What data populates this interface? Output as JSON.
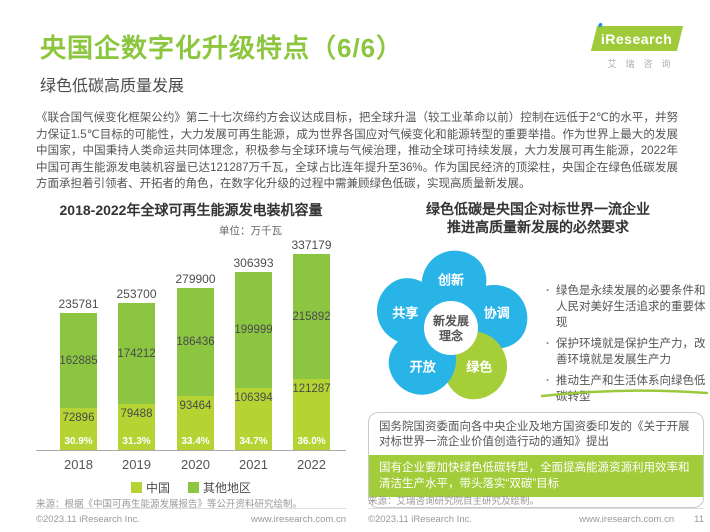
{
  "header": {
    "title": "央国企数字化升级特点（6/6）",
    "subtitle": "绿色低碳高质量发展",
    "logo": {
      "brand": "iResearch",
      "brand_cn": "艾瑞咨询"
    }
  },
  "intro_paragraph": "《联合国气候变化框架公约》第二十七次缔约方会议达成目标，把全球升温（较工业革命以前）控制在远低于2℃的水平，并努力保证1.5℃目标的可能性，大力发展可再生能源，成为世界各国应对气候变化和能源转型的重要举措。作为世界上最大的发展中国家，中国秉持人类命运共同体理念，积极参与全球环境与气候治理，推动全球可持续发展，大力发展可再生能源，2022年中国可再生能源发电装机容量已达121287万千瓦，全球占比连年提升至36%。作为国民经济的顶梁柱，央国企在绿色低碳发展方面承担着引领者、开拓者的角色，在数字化升级的过程中需兼顾绿色低碳，实现高质量新发展。",
  "chart_data": {
    "type": "bar",
    "stacked": true,
    "title": "2018-2022年全球可再生能源发电装机容量",
    "unit_label": "单位：万千瓦",
    "categories": [
      "2018",
      "2019",
      "2020",
      "2021",
      "2022"
    ],
    "series": [
      {
        "name": "中国",
        "color": "#b5d433",
        "values": [
          72896,
          79488,
          93464,
          106394,
          121287
        ],
        "share_labels": [
          "30.9%",
          "31.3%",
          "33.4%",
          "34.7%",
          "36.0%"
        ]
      },
      {
        "name": "其他地区",
        "color": "#8cc542",
        "values": [
          162885,
          174212,
          186436,
          199999,
          215892
        ]
      }
    ],
    "totals": [
      235781,
      253700,
      279900,
      306393,
      337179
    ],
    "ymax": 337179,
    "legend_position": "bottom",
    "grid": false,
    "source": "来源：根据《中国可再生能源发展报告》等公开资料研究绘制。"
  },
  "right_panel": {
    "title_line1": "绿色低碳是央国企对标世界一流企业",
    "title_line2": "推进高质量新发展的必然要求",
    "flower": {
      "center_line1": "新发展",
      "center_line2": "理念",
      "petals": [
        {
          "label": "创新",
          "color": "#29b4e8"
        },
        {
          "label": "协调",
          "color": "#29b4e8"
        },
        {
          "label": "绿色",
          "color": "#a6ce38"
        },
        {
          "label": "开放",
          "color": "#29b4e8"
        },
        {
          "label": "共享",
          "color": "#29b4e8"
        }
      ]
    },
    "bullets": [
      "绿色是永续发展的必要条件和人民对美好生活追求的重要体现",
      "保护环境就是保护生产力，改善环境就是发展生产力",
      "推动生产和生活体系向绿色低碳转型"
    ],
    "notice_box": {
      "intro": "国务院国资委面向各中央企业及地方国资委印发的《关于开展对标世界一流企业价值创造行动的通知》提出",
      "highlight": "国有企业要加快绿色低碳转型，全面提高能源资源利用效率和清洁生产水平，带头落实“双碳”目标",
      "highlight_bg": "#a2cc39"
    },
    "source": "来源：艾瑞咨询研究院自主研究及绘制。"
  },
  "footer": {
    "copyright": "©2023.11 iResearch Inc.",
    "website": "www.iresearch.com.cn",
    "page_number": "11"
  },
  "colors": {
    "title_green": "#8cc63f",
    "swoosh_green": "#9cc93c",
    "axis_gray": "#aaaaaa"
  }
}
